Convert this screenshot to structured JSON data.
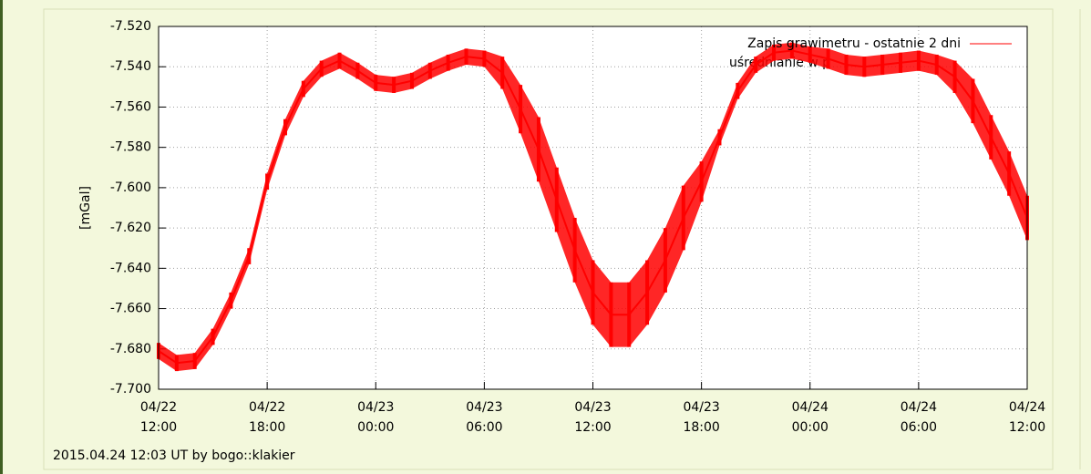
{
  "chart_data": {
    "type": "line",
    "y_label": "[mGal]",
    "footer": "2015.04.24  12:03 UT  by  bogo::klakier",
    "legend_note": "uśrednianie w p",
    "legend_position": "top-right",
    "grid": true,
    "xlim": [
      "04/22 12:00",
      "04/24 12:00"
    ],
    "xticks": [
      "04/22 12:00",
      "04/22 18:00",
      "04/23 00:00",
      "04/23 06:00",
      "04/23 12:00",
      "04/23 18:00",
      "04/24 00:00",
      "04/24 06:00",
      "04/24 12:00"
    ],
    "ylim": [
      -7.7,
      -7.52
    ],
    "yticks": [
      {
        "value": -7.7,
        "label": "-7.700"
      },
      {
        "value": -7.68,
        "label": "-7.680"
      },
      {
        "value": -7.66,
        "label": "-7.660"
      },
      {
        "value": -7.64,
        "label": "-7.640"
      },
      {
        "value": -7.62,
        "label": "-7.620"
      },
      {
        "value": -7.6,
        "label": "-7.600"
      },
      {
        "value": -7.58,
        "label": "-7.580"
      },
      {
        "value": -7.56,
        "label": "-7.560"
      },
      {
        "value": -7.54,
        "label": "-7.540"
      },
      {
        "value": -7.52,
        "label": "-7.520"
      }
    ],
    "x": [
      "04/22 12:00",
      "04/22 13:00",
      "04/22 14:00",
      "04/22 15:00",
      "04/22 16:00",
      "04/22 17:00",
      "04/22 18:00",
      "04/22 19:00",
      "04/22 20:00",
      "04/22 21:00",
      "04/22 22:00",
      "04/22 23:00",
      "04/23 00:00",
      "04/23 01:00",
      "04/23 02:00",
      "04/23 03:00",
      "04/23 04:00",
      "04/23 05:00",
      "04/23 06:00",
      "04/23 07:00",
      "04/23 08:00",
      "04/23 09:00",
      "04/23 10:00",
      "04/23 11:00",
      "04/23 12:00",
      "04/23 13:00",
      "04/23 14:00",
      "04/23 15:00",
      "04/23 16:00",
      "04/23 17:00",
      "04/23 18:00",
      "04/23 19:00",
      "04/23 20:00",
      "04/23 21:00",
      "04/23 22:00",
      "04/23 23:00",
      "04/24 00:00",
      "04/24 01:00",
      "04/24 02:00",
      "04/24 03:00",
      "04/24 04:00",
      "04/24 05:00",
      "04/24 06:00",
      "04/24 07:00",
      "04/24 08:00",
      "04/24 09:00",
      "04/24 10:00",
      "04/24 11:00",
      "04/24 12:00"
    ],
    "series": [
      {
        "name": "Zapis grawimetru - ostatnie 2 dni",
        "color": "#ff0000",
        "values": [
          -7.681,
          -7.687,
          -7.686,
          -7.674,
          -7.656,
          -7.634,
          -7.597,
          -7.57,
          -7.551,
          -7.541,
          -7.537,
          -7.542,
          -7.548,
          -7.549,
          -7.547,
          -7.542,
          -7.538,
          -7.535,
          -7.536,
          -7.543,
          -7.561,
          -7.581,
          -7.606,
          -7.631,
          -7.652,
          -7.663,
          -7.663,
          -7.652,
          -7.636,
          -7.615,
          -7.597,
          -7.575,
          -7.552,
          -7.539,
          -7.533,
          -7.532,
          -7.534,
          -7.536,
          -7.539,
          -7.54,
          -7.539,
          -7.538,
          -7.537,
          -7.539,
          -7.545,
          -7.557,
          -7.575,
          -7.593,
          -7.615
        ],
        "low": [
          -7.685,
          -7.691,
          -7.69,
          -7.678,
          -7.66,
          -7.638,
          -7.601,
          -7.574,
          -7.555,
          -7.545,
          -7.541,
          -7.546,
          -7.552,
          -7.553,
          -7.551,
          -7.546,
          -7.542,
          -7.539,
          -7.54,
          -7.551,
          -7.573,
          -7.597,
          -7.622,
          -7.647,
          -7.668,
          -7.679,
          -7.679,
          -7.668,
          -7.652,
          -7.631,
          -7.607,
          -7.579,
          -7.556,
          -7.543,
          -7.537,
          -7.536,
          -7.538,
          -7.541,
          -7.544,
          -7.545,
          -7.544,
          -7.543,
          -7.542,
          -7.544,
          -7.553,
          -7.568,
          -7.586,
          -7.604,
          -7.626
        ],
        "high": [
          -7.677,
          -7.683,
          -7.682,
          -7.67,
          -7.652,
          -7.63,
          -7.593,
          -7.566,
          -7.547,
          -7.537,
          -7.533,
          -7.538,
          -7.544,
          -7.545,
          -7.543,
          -7.538,
          -7.534,
          -7.531,
          -7.532,
          -7.535,
          -7.549,
          -7.565,
          -7.59,
          -7.615,
          -7.636,
          -7.647,
          -7.647,
          -7.636,
          -7.62,
          -7.599,
          -7.587,
          -7.571,
          -7.548,
          -7.535,
          -7.529,
          -7.528,
          -7.53,
          -7.531,
          -7.534,
          -7.535,
          -7.534,
          -7.533,
          -7.532,
          -7.534,
          -7.537,
          -7.546,
          -7.564,
          -7.582,
          -7.604
        ]
      }
    ]
  }
}
